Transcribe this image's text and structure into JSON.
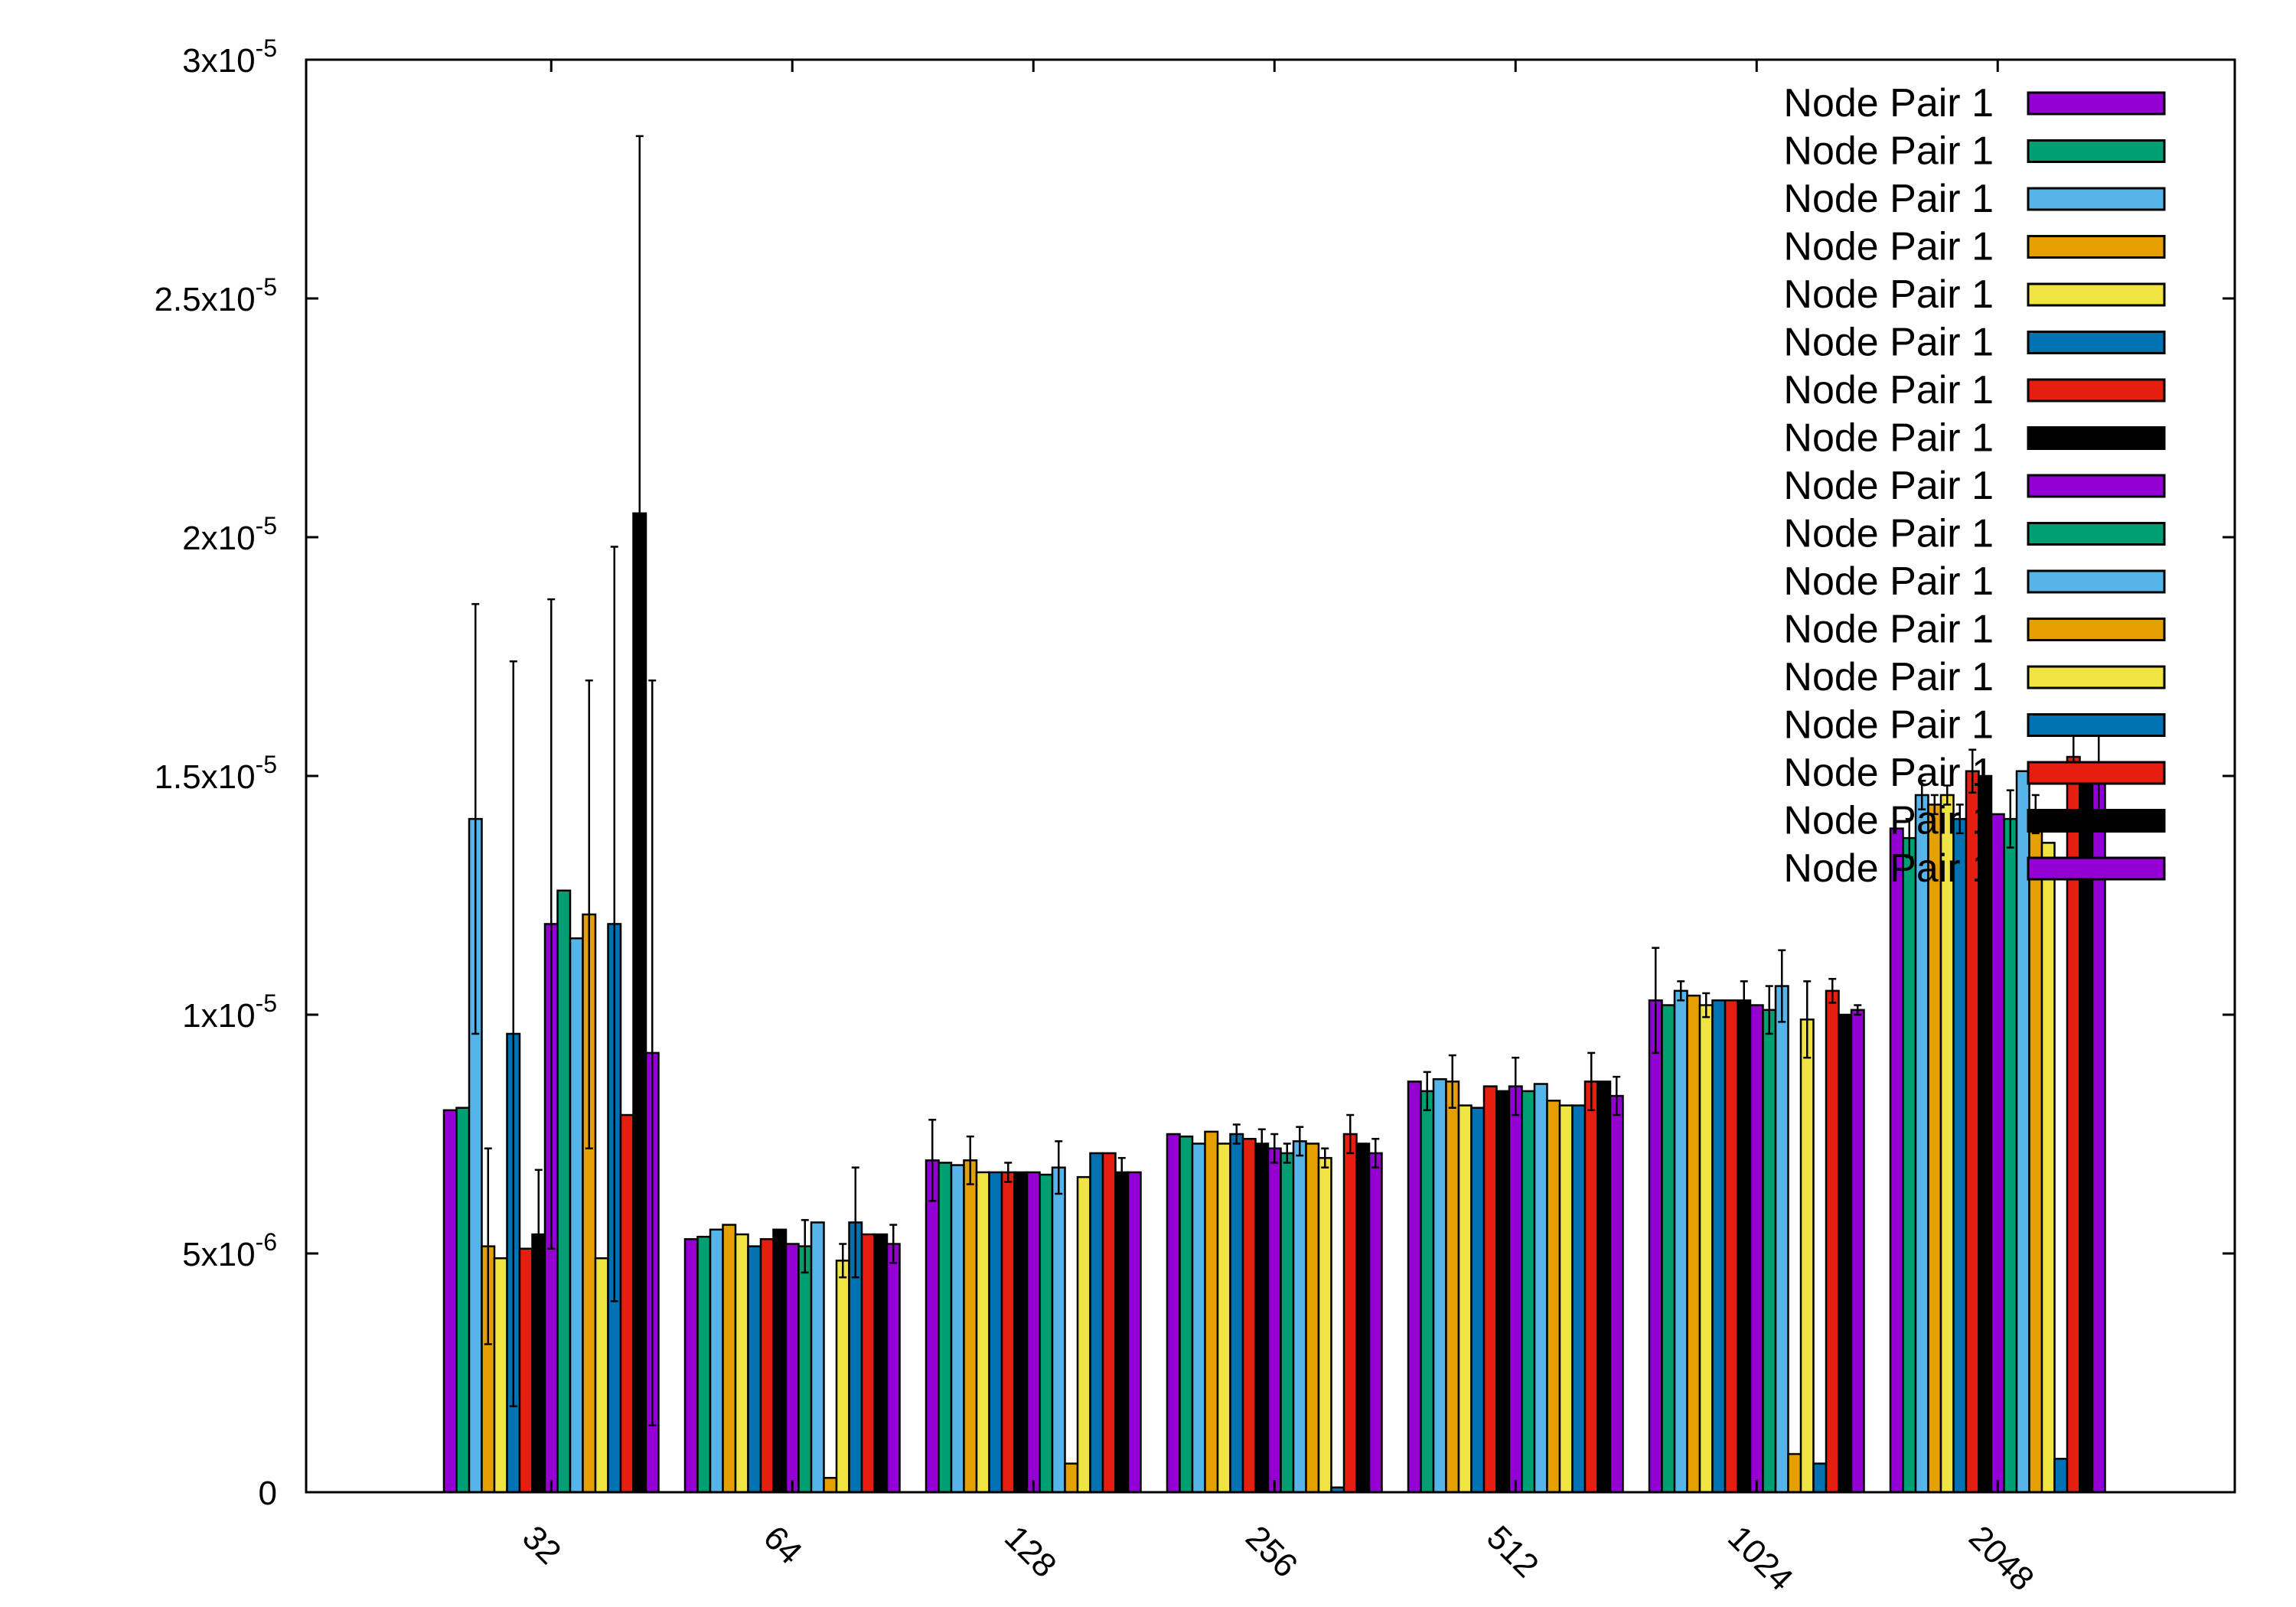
{
  "chart_data": {
    "type": "bar",
    "title": "",
    "xlabel": "",
    "ylabel": "",
    "categories": [
      "32",
      "64",
      "128",
      "256",
      "512",
      "1024",
      "2048"
    ],
    "ylim": [
      0,
      3e-05
    ],
    "y_ticks": [
      {
        "value": 0,
        "base": "0",
        "exp": ""
      },
      {
        "value": 5e-06,
        "base": "5x10",
        "exp": "-6"
      },
      {
        "value": 1e-05,
        "base": "1x10",
        "exp": "-5"
      },
      {
        "value": 1.5e-05,
        "base": "1.5x10",
        "exp": "-5"
      },
      {
        "value": 2e-05,
        "base": "2x10",
        "exp": "-5"
      },
      {
        "value": 2.5e-05,
        "base": "2.5x10",
        "exp": "-5"
      },
      {
        "value": 3e-05,
        "base": "3x10",
        "exp": "-5"
      }
    ],
    "legend_position": "top-right",
    "grid": false,
    "series": [
      {
        "name": "Node Pair 1",
        "color": "#9400d3",
        "values": [
          8e-06,
          5.3e-06,
          6.95e-06,
          7.5e-06,
          8.6e-06,
          1.03e-05,
          1.39e-05
        ],
        "errors": [
          0,
          0,
          8.5e-07,
          0,
          0,
          1.1e-06,
          0
        ]
      },
      {
        "name": "Node Pair 1",
        "color": "#009e73",
        "values": [
          8.05e-06,
          5.35e-06,
          6.9e-06,
          7.45e-06,
          8.4e-06,
          1.02e-05,
          1.37e-05
        ],
        "errors": [
          0,
          0,
          0,
          0,
          4e-07,
          0,
          4e-07
        ]
      },
      {
        "name": "Node Pair 1",
        "color": "#56b4e9",
        "values": [
          1.41e-05,
          5.5e-06,
          6.85e-06,
          7.3e-06,
          8.65e-06,
          1.05e-05,
          1.46e-05
        ],
        "errors": [
          4.5e-06,
          0,
          0,
          0,
          0,
          2e-07,
          3e-07
        ]
      },
      {
        "name": "Node Pair 1",
        "color": "#e69f00",
        "values": [
          5.15e-06,
          5.6e-06,
          6.95e-06,
          7.55e-06,
          8.6e-06,
          1.04e-05,
          1.44e-05
        ],
        "errors": [
          2.05e-06,
          0,
          5e-07,
          0,
          5.5e-07,
          0,
          2e-07
        ]
      },
      {
        "name": "Node Pair 1",
        "color": "#f0e442",
        "values": [
          4.9e-06,
          5.4e-06,
          6.7e-06,
          7.3e-06,
          8.1e-06,
          1.02e-05,
          1.46e-05
        ],
        "errors": [
          0,
          0,
          0,
          0,
          0,
          2.5e-07,
          2e-07
        ]
      },
      {
        "name": "Node Pair 1",
        "color": "#0072b2",
        "values": [
          9.6e-06,
          5.15e-06,
          6.7e-06,
          7.5e-06,
          8.05e-06,
          1.03e-05,
          1.41e-05
        ],
        "errors": [
          7.8e-06,
          0,
          0,
          2e-07,
          0,
          0,
          3e-07
        ]
      },
      {
        "name": "Node Pair 1",
        "color": "#e51e10",
        "values": [
          5.1e-06,
          5.3e-06,
          6.7e-06,
          7.4e-06,
          8.5e-06,
          1.03e-05,
          1.51e-05
        ],
        "errors": [
          0,
          0,
          2e-07,
          0,
          0,
          0,
          4.5e-07
        ]
      },
      {
        "name": "Node Pair 1",
        "color": "#000000",
        "values": [
          5.4e-06,
          5.5e-06,
          6.7e-06,
          7.3e-06,
          8.4e-06,
          1.03e-05,
          1.5e-05
        ],
        "errors": [
          1.35e-06,
          0,
          0,
          3e-07,
          0,
          4e-07,
          0
        ]
      },
      {
        "name": "Node Pair 1",
        "color": "#9400d3",
        "values": [
          1.19e-05,
          5.2e-06,
          6.7e-06,
          7.2e-06,
          8.5e-06,
          1.02e-05,
          1.42e-05
        ],
        "errors": [
          6.8e-06,
          0,
          0,
          3e-07,
          6e-07,
          0,
          0
        ]
      },
      {
        "name": "Node Pair 1",
        "color": "#009e73",
        "values": [
          1.26e-05,
          5.15e-06,
          6.65e-06,
          7.1e-06,
          8.4e-06,
          1.01e-05,
          1.41e-05
        ],
        "errors": [
          0,
          5.5e-07,
          0,
          2e-07,
          0,
          5e-07,
          6e-07
        ]
      },
      {
        "name": "Node Pair 1",
        "color": "#56b4e9",
        "values": [
          1.16e-05,
          5.65e-06,
          6.8e-06,
          7.35e-06,
          8.55e-06,
          1.06e-05,
          1.51e-05
        ],
        "errors": [
          0,
          0,
          5.5e-07,
          3e-07,
          0,
          7.5e-07,
          0
        ]
      },
      {
        "name": "Node Pair 1",
        "color": "#e69f00",
        "values": [
          1.21e-05,
          3e-07,
          6e-07,
          7.3e-06,
          8.2e-06,
          8e-07,
          1.42e-05
        ],
        "errors": [
          4.9e-06,
          0,
          0,
          0,
          0,
          0,
          4e-07
        ]
      },
      {
        "name": "Node Pair 1",
        "color": "#f0e442",
        "values": [
          4.9e-06,
          4.85e-06,
          6.6e-06,
          7e-06,
          8.1e-06,
          9.9e-06,
          1.36e-05
        ],
        "errors": [
          0,
          3.5e-07,
          0,
          2e-07,
          0,
          8e-07,
          0
        ]
      },
      {
        "name": "Node Pair 1",
        "color": "#0072b2",
        "values": [
          1.19e-05,
          5.65e-06,
          7.1e-06,
          1e-07,
          8.1e-06,
          6e-07,
          7e-07
        ],
        "errors": [
          7.9e-06,
          1.15e-06,
          0,
          0,
          0,
          0,
          0
        ]
      },
      {
        "name": "Node Pair 1",
        "color": "#e51e10",
        "values": [
          7.9e-06,
          5.4e-06,
          7.1e-06,
          7.5e-06,
          8.6e-06,
          1.05e-05,
          1.54e-05
        ],
        "errors": [
          0,
          0,
          0,
          4e-07,
          6e-07,
          2.5e-07,
          5e-07
        ]
      },
      {
        "name": "Node Pair 1",
        "color": "#000000",
        "values": [
          2.05e-05,
          5.4e-06,
          6.7e-06,
          7.3e-06,
          8.6e-06,
          1e-05,
          1.49e-05
        ],
        "errors": [
          7.9e-06,
          0,
          3e-07,
          0,
          0,
          0,
          0
        ]
      },
      {
        "name": "Node Pair 1",
        "color": "#9400d3",
        "values": [
          9.2e-06,
          5.2e-06,
          6.7e-06,
          7.1e-06,
          8.3e-06,
          1.01e-05,
          1.49e-05
        ],
        "errors": [
          7.8e-06,
          4e-07,
          0,
          3e-07,
          4e-07,
          1e-07,
          1.05e-06
        ]
      }
    ]
  }
}
